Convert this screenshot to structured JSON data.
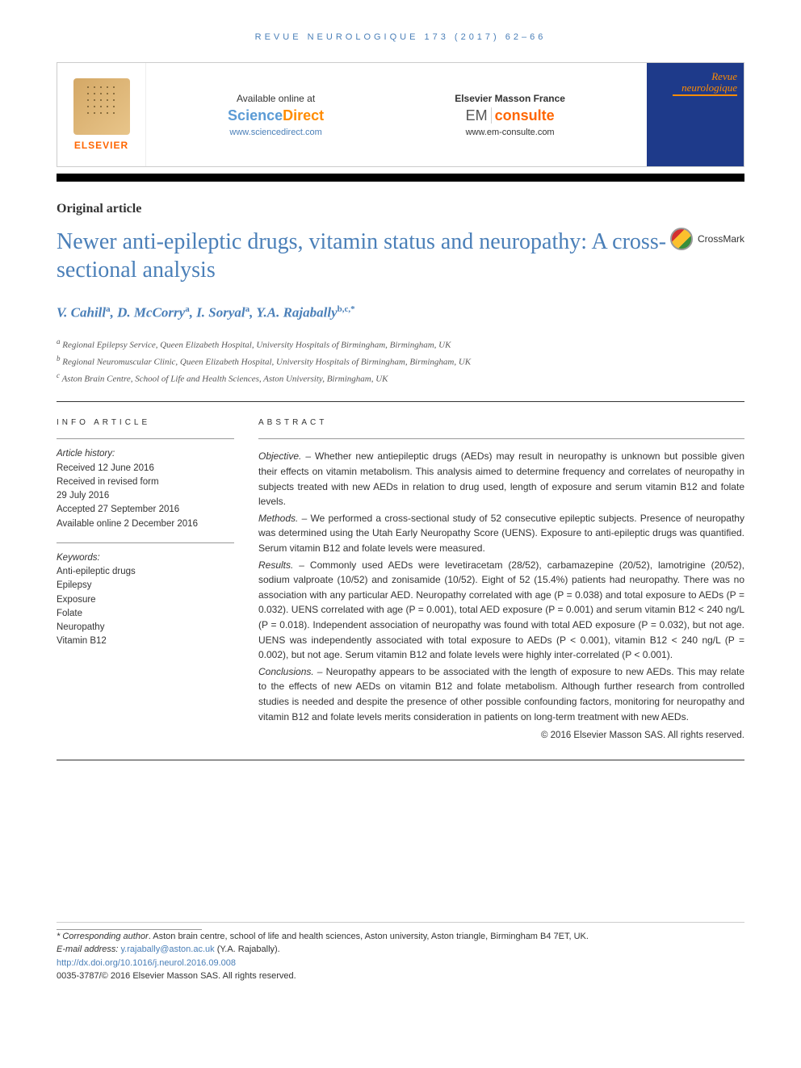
{
  "journal_header": "REVUE NEUROLOGIQUE 173 (2017) 62–66",
  "banner": {
    "available_label": "Available online at",
    "sciencedirect_science": "Science",
    "sciencedirect_direct": "Direct",
    "sciencedirect_url": "www.sciencedirect.com",
    "masson_label": "Elsevier Masson France",
    "em_prefix": "EM",
    "consulte": "consulte",
    "emconsulte_url": "www.em-consulte.com",
    "elsevier_label": "ELSEVIER",
    "journal_cover_line1": "Revue",
    "journal_cover_line2": "neurologique"
  },
  "crossmark_label": "CrossMark",
  "article_type": "Original article",
  "title": "Newer anti-epileptic drugs, vitamin status and neuropathy: A cross-sectional analysis",
  "authors_html": {
    "a1_name": "V. Cahill",
    "a1_aff": "a",
    "a2_name": "D. McCorry",
    "a2_aff": "a",
    "a3_name": "I. Soryal",
    "a3_aff": "a",
    "a4_name": "Y.A. Rajabally",
    "a4_aff": "b,c,",
    "a4_corr": "*"
  },
  "affiliations": {
    "a": "Regional Epilepsy Service, Queen Elizabeth Hospital, University Hospitals of Birmingham, Birmingham, UK",
    "b": "Regional Neuromuscular Clinic, Queen Elizabeth Hospital, University Hospitals of Birmingham, Birmingham, UK",
    "c": "Aston Brain Centre, School of Life and Health Sciences, Aston University, Birmingham, UK"
  },
  "info_heading": "INFO ARTICLE",
  "abstract_heading": "ABSTRACT",
  "history": {
    "label": "Article history:",
    "received": "Received 12 June 2016",
    "revised_l1": "Received in revised form",
    "revised_l2": "29 July 2016",
    "accepted": "Accepted 27 September 2016",
    "online": "Available online 2 December 2016"
  },
  "keywords": {
    "label": "Keywords:",
    "items": [
      "Anti-epileptic drugs",
      "Epilepsy",
      "Exposure",
      "Folate",
      "Neuropathy",
      "Vitamin B12"
    ]
  },
  "abstract": {
    "objective_label": "Objective. –",
    "objective": "Whether new antiepileptic drugs (AEDs) may result in neuropathy is unknown but possible given their effects on vitamin metabolism. This analysis aimed to determine frequency and correlates of neuropathy in subjects treated with new AEDs in relation to drug used, length of exposure and serum vitamin B12 and folate levels.",
    "methods_label": "Methods. –",
    "methods": "We performed a cross-sectional study of 52 consecutive epileptic subjects. Presence of neuropathy was determined using the Utah Early Neuropathy Score (UENS). Exposure to anti-epileptic drugs was quantified. Serum vitamin B12 and folate levels were measured.",
    "results_label": "Results. –",
    "results": "Commonly used AEDs were levetiracetam (28/52), carbamazepine (20/52), lamotrigine (20/52), sodium valproate (10/52) and zonisamide (10/52). Eight of 52 (15.4%) patients had neuropathy. There was no association with any particular AED. Neuropathy correlated with age (P = 0.038) and total exposure to AEDs (P = 0.032). UENS correlated with age (P = 0.001), total AED exposure (P = 0.001) and serum vitamin B12 < 240 ng/L (P = 0.018). Independent association of neuropathy was found with total AED exposure (P = 0.032), but not age. UENS was independently associated with total exposure to AEDs (P < 0.001), vitamin B12 < 240 ng/L (P = 0.002), but not age. Serum vitamin B12 and folate levels were highly inter-correlated (P < 0.001).",
    "conclusions_label": "Conclusions. –",
    "conclusions": "Neuropathy appears to be associated with the length of exposure to new AEDs. This may relate to the effects of new AEDs on vitamin B12 and folate metabolism. Although further research from controlled studies is needed and despite the presence of other possible confounding factors, monitoring for neuropathy and vitamin B12 and folate levels merits consideration in patients on long-term treatment with new AEDs.",
    "copyright": "© 2016 Elsevier Masson SAS. All rights reserved."
  },
  "footer": {
    "corr_label": "* Corresponding author",
    "corr_text": ". Aston brain centre, school of life and health sciences, Aston university, Aston triangle, Birmingham B4 7ET, UK.",
    "email_label": "E-mail address:",
    "email": "y.rajabally@aston.ac.uk",
    "email_name": "(Y.A. Rajabally).",
    "doi": "http://dx.doi.org/10.1016/j.neurol.2016.09.008",
    "issn_copyright": "0035-3787/© 2016 Elsevier Masson SAS. All rights reserved."
  },
  "colors": {
    "link_blue": "#4a7fb8",
    "elsevier_orange": "#ff6600",
    "journal_bg": "#1e3a8a"
  }
}
